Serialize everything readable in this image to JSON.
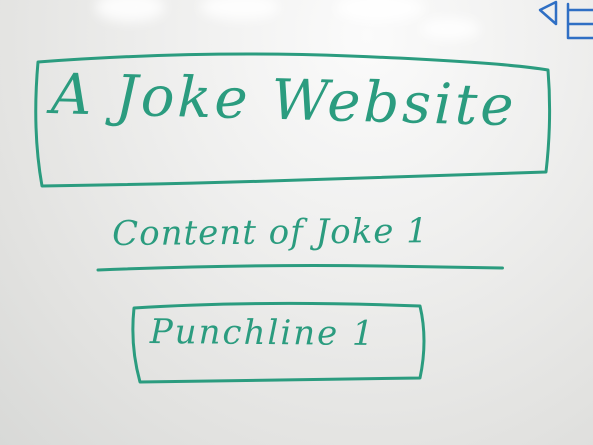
{
  "whiteboard": {
    "title": "A Joke Website",
    "joke_content": "Content of Joke 1",
    "punchline": "Punchline 1",
    "ink_color": "#2b9c7f",
    "edge_ink_color": "#2f6fc4"
  }
}
